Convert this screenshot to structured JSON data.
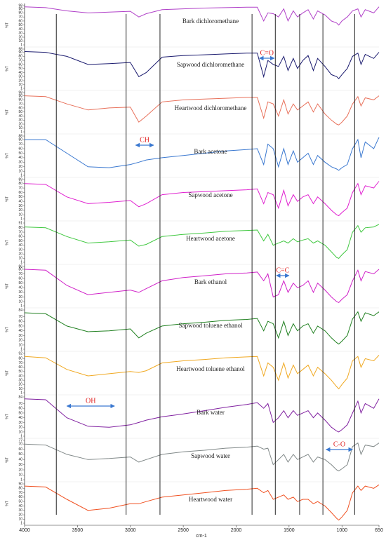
{
  "chart_data": {
    "type": "stacked_line",
    "xlabel": "cm-1",
    "ylabel": "%T",
    "xlim": [
      4000,
      650
    ],
    "xticks": [
      4000,
      3500,
      3000,
      2500,
      2000,
      1500,
      1000,
      650
    ],
    "reference_lines": [
      3700,
      3040,
      2720,
      1850,
      1630,
      1400,
      1180,
      880
    ],
    "x": [
      4000,
      3800,
      3600,
      3400,
      3200,
      3000,
      2920,
      2850,
      2700,
      2500,
      2300,
      2100,
      1900,
      1800,
      1740,
      1700,
      1650,
      1600,
      1550,
      1510,
      1460,
      1420,
      1370,
      1320,
      1270,
      1230,
      1160,
      1100,
      1050,
      1030,
      1000,
      950,
      900,
      850,
      820,
      780,
      700,
      650
    ],
    "series": [
      {
        "name": "Bark dichloromethane",
        "color": "#b040c8",
        "ylim": [
          1,
          98
        ],
        "yticks": [
          1,
          10,
          20,
          30,
          40,
          50,
          60,
          70,
          80,
          90,
          98
        ],
        "values": [
          95,
          93,
          85,
          80,
          82,
          84,
          70,
          78,
          88,
          90,
          92,
          93,
          94,
          94,
          60,
          80,
          78,
          70,
          90,
          60,
          85,
          70,
          80,
          88,
          65,
          85,
          75,
          60,
          55,
          50,
          60,
          70,
          85,
          90,
          70,
          88,
          80,
          95
        ]
      },
      {
        "name": "Sapwood dichloromethane",
        "color": "#1a1a6e",
        "ylim": [
          1,
          98
        ],
        "yticks": [
          1,
          10,
          20,
          30,
          40,
          50,
          60,
          70,
          80,
          90,
          98
        ],
        "values": [
          92,
          90,
          80,
          60,
          62,
          65,
          30,
          40,
          78,
          82,
          84,
          86,
          88,
          88,
          30,
          70,
          60,
          55,
          80,
          45,
          75,
          50,
          70,
          82,
          45,
          75,
          55,
          35,
          30,
          25,
          35,
          50,
          80,
          88,
          60,
          85,
          75,
          90
        ],
        "annotation": {
          "text": "C=O",
          "x_range": [
            1780,
            1640
          ]
        }
      },
      {
        "name": "Heartwood dichloromethane",
        "color": "#e8705a",
        "ylim": [
          1,
          98
        ],
        "yticks": [
          1,
          10,
          20,
          30,
          40,
          50,
          60,
          70,
          80,
          90,
          98
        ],
        "values": [
          90,
          88,
          70,
          55,
          60,
          62,
          25,
          40,
          75,
          80,
          82,
          84,
          86,
          86,
          35,
          75,
          70,
          40,
          80,
          45,
          70,
          55,
          65,
          75,
          50,
          70,
          45,
          30,
          20,
          18,
          25,
          40,
          70,
          88,
          65,
          85,
          80,
          90
        ]
      },
      {
        "name": "Bark acetone",
        "color": "#3a78d0",
        "ylim": [
          1,
          88
        ],
        "yticks": [
          1,
          10,
          20,
          30,
          40,
          50,
          60,
          70,
          80,
          88
        ],
        "values": [
          80,
          80,
          50,
          20,
          18,
          25,
          30,
          35,
          40,
          45,
          50,
          55,
          58,
          60,
          25,
          70,
          60,
          20,
          60,
          25,
          55,
          30,
          40,
          50,
          25,
          45,
          30,
          20,
          15,
          12,
          18,
          25,
          60,
          80,
          40,
          75,
          60,
          85
        ],
        "annotation": {
          "text": "CH",
          "x_range": [
            2950,
            2780
          ]
        }
      },
      {
        "name": "Sapwood acetone",
        "color": "#e020d0",
        "ylim": [
          1,
          89
        ],
        "yticks": [
          1,
          10,
          20,
          30,
          40,
          50,
          60,
          70,
          80,
          89
        ],
        "values": [
          80,
          78,
          50,
          35,
          38,
          42,
          28,
          35,
          55,
          60,
          62,
          64,
          66,
          68,
          35,
          60,
          55,
          25,
          65,
          30,
          55,
          40,
          50,
          55,
          35,
          50,
          35,
          20,
          10,
          8,
          15,
          25,
          60,
          80,
          55,
          75,
          70,
          85
        ]
      },
      {
        "name": "Heartwood acetone",
        "color": "#40c840",
        "ylim": [
          1,
          91
        ],
        "yticks": [
          1,
          10,
          20,
          30,
          40,
          50,
          60,
          70,
          80,
          91
        ],
        "values": [
          82,
          80,
          60,
          45,
          48,
          52,
          38,
          42,
          60,
          65,
          68,
          72,
          74,
          75,
          50,
          65,
          40,
          45,
          50,
          45,
          55,
          48,
          52,
          55,
          45,
          50,
          40,
          25,
          12,
          10,
          18,
          30,
          70,
          85,
          70,
          80,
          82,
          88
        ]
      },
      {
        "name": "Bark ethanol",
        "color": "#d020c8",
        "ylim": [
          1,
          86
        ],
        "yticks": [
          1,
          10,
          20,
          30,
          40,
          50,
          60,
          70,
          80,
          86
        ],
        "values": [
          80,
          78,
          45,
          25,
          30,
          35,
          30,
          38,
          55,
          62,
          66,
          70,
          72,
          74,
          55,
          70,
          20,
          25,
          55,
          30,
          50,
          40,
          45,
          55,
          30,
          50,
          35,
          20,
          10,
          8,
          15,
          25,
          55,
          78,
          55,
          75,
          70,
          80
        ],
        "annotation": {
          "text": "C=C",
          "x_range": [
            1620,
            1500
          ]
        }
      },
      {
        "name": "Sapwood toluene ethanol",
        "color": "#208020",
        "ylim": [
          1,
          84
        ],
        "yticks": [
          1,
          10,
          20,
          30,
          40,
          50,
          60,
          70,
          84
        ],
        "values": [
          78,
          76,
          50,
          38,
          40,
          44,
          25,
          35,
          50,
          55,
          58,
          62,
          64,
          66,
          40,
          60,
          55,
          25,
          60,
          30,
          55,
          40,
          50,
          55,
          35,
          50,
          40,
          25,
          15,
          12,
          18,
          30,
          65,
          80,
          60,
          78,
          72,
          80
        ]
      },
      {
        "name": "Heartwood toluene ethanol",
        "color": "#f0a820",
        "ylim": [
          1,
          92
        ],
        "yticks": [
          1,
          10,
          20,
          30,
          40,
          50,
          60,
          70,
          80,
          92
        ],
        "values": [
          85,
          82,
          55,
          40,
          45,
          50,
          48,
          52,
          70,
          75,
          78,
          82,
          84,
          85,
          40,
          70,
          60,
          30,
          70,
          35,
          65,
          45,
          55,
          65,
          40,
          60,
          45,
          30,
          15,
          10,
          20,
          35,
          75,
          85,
          60,
          80,
          75,
          88
        ]
      },
      {
        "name": "Bark water",
        "color": "#8020a0",
        "ylim": [
          1,
          84
        ],
        "yticks": [
          1,
          10,
          20,
          30,
          40,
          50,
          60,
          70,
          84
        ],
        "values": [
          80,
          78,
          40,
          22,
          20,
          25,
          30,
          35,
          42,
          48,
          55,
          62,
          68,
          72,
          60,
          70,
          30,
          40,
          55,
          40,
          55,
          45,
          50,
          55,
          40,
          50,
          35,
          20,
          12,
          10,
          15,
          25,
          50,
          75,
          50,
          70,
          60,
          80
        ],
        "annotation": {
          "text": "OH",
          "x_range": [
            3600,
            3150
          ]
        }
      },
      {
        "name": "Sapwood water",
        "color": "#808888",
        "ylim": [
          1,
          77
        ],
        "yticks": [
          1,
          10,
          20,
          30,
          40,
          50,
          60,
          70,
          77
        ],
        "values": [
          70,
          68,
          50,
          40,
          42,
          45,
          35,
          40,
          50,
          55,
          58,
          62,
          64,
          66,
          60,
          62,
          30,
          40,
          50,
          35,
          50,
          40,
          45,
          50,
          35,
          45,
          40,
          30,
          20,
          18,
          22,
          30,
          65,
          72,
          50,
          68,
          65,
          72
        ],
        "annotation": {
          "text": "C-O",
          "x_range": [
            1150,
            900
          ]
        }
      },
      {
        "name": "Heartwood water",
        "color": "#f05020",
        "ylim": [
          1,
          90
        ],
        "yticks": [
          1,
          10,
          20,
          30,
          40,
          50,
          60,
          70,
          80,
          90
        ],
        "values": [
          85,
          83,
          55,
          30,
          35,
          45,
          45,
          50,
          60,
          65,
          70,
          75,
          78,
          80,
          70,
          75,
          55,
          60,
          65,
          55,
          60,
          50,
          55,
          55,
          45,
          50,
          40,
          25,
          12,
          8,
          15,
          30,
          70,
          85,
          75,
          85,
          80,
          88
        ]
      }
    ]
  }
}
